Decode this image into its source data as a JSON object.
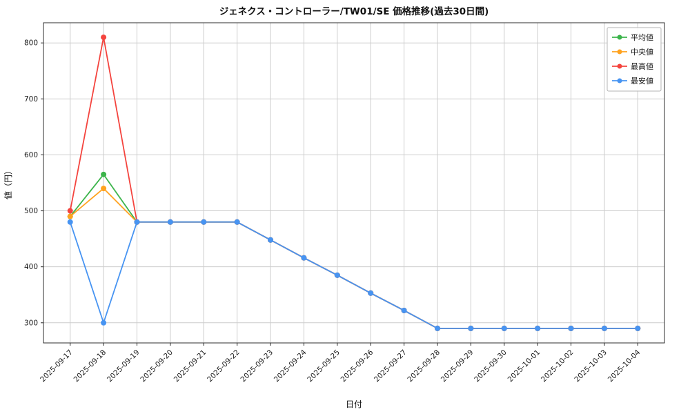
{
  "chart_data": {
    "type": "line",
    "title": "ジェネクス・コントローラー/TW01/SE 価格推移(過去30日間)",
    "xlabel": "日付",
    "ylabel": "値（円）",
    "x": [
      "2025-09-17",
      "2025-09-18",
      "2025-09-19",
      "2025-09-20",
      "2025-09-21",
      "2025-09-22",
      "2025-09-23",
      "2025-09-24",
      "2025-09-25",
      "2025-09-26",
      "2025-09-27",
      "2025-09-28",
      "2025-09-29",
      "2025-09-30",
      "2025-10-01",
      "2025-10-02",
      "2025-10-03",
      "2025-10-04"
    ],
    "series": [
      {
        "id": "average",
        "name": "平均値",
        "color": "#3cb44b",
        "values": [
          490,
          565,
          480,
          480,
          480,
          480,
          448,
          416,
          385,
          353,
          322,
          290,
          290,
          290,
          290,
          290,
          290,
          290
        ]
      },
      {
        "id": "median",
        "name": "中央値",
        "color": "#ffa21f",
        "values": [
          490,
          540,
          480,
          480,
          480,
          480,
          448,
          416,
          385,
          353,
          322,
          290,
          290,
          290,
          290,
          290,
          290,
          290
        ]
      },
      {
        "id": "highest",
        "name": "最高値",
        "color": "#f4443e",
        "values": [
          500,
          810,
          480,
          480,
          480,
          480,
          448,
          416,
          385,
          353,
          322,
          290,
          290,
          290,
          290,
          290,
          290,
          290
        ]
      },
      {
        "id": "lowest",
        "name": "最安値",
        "color": "#4794f2",
        "values": [
          480,
          300,
          480,
          480,
          480,
          480,
          448,
          416,
          385,
          353,
          322,
          290,
          290,
          290,
          290,
          290,
          290,
          290
        ]
      }
    ],
    "ylim": [
      264,
      836
    ],
    "yticks": [
      300,
      400,
      500,
      600,
      700,
      800
    ],
    "x_margin": 0.8,
    "grid": true,
    "legend_position": "upper right"
  }
}
